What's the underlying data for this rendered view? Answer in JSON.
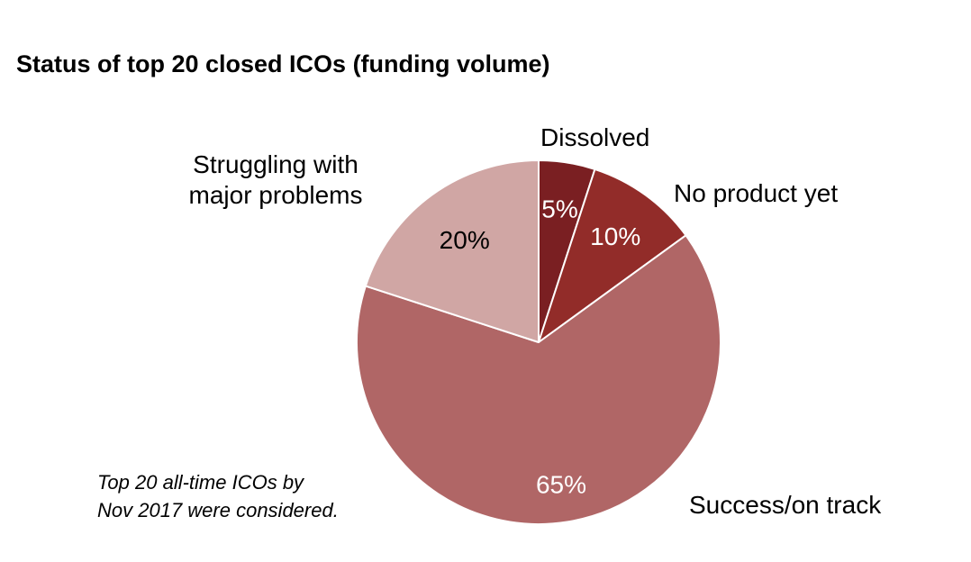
{
  "chart_data": {
    "type": "pie",
    "title": "Status of top 20 closed ICOs (funding volume)",
    "start_angle_deg": 0,
    "direction": "clockwise",
    "slices": [
      {
        "name": "Dissolved",
        "label_lines": [
          "Dissolved"
        ],
        "value": 5,
        "value_label": "5%",
        "color": "#7a1f22"
      },
      {
        "name": "No product yet",
        "label_lines": [
          "No product yet"
        ],
        "value": 10,
        "value_label": "10%",
        "color": "#922c29"
      },
      {
        "name": "Success/on track",
        "label_lines": [
          "Success/on track"
        ],
        "value": 65,
        "value_label": "65%",
        "color": "#b06666"
      },
      {
        "name": "Struggling with major problems",
        "label_lines": [
          "Struggling with",
          "major problems"
        ],
        "value": 20,
        "value_label": "20%",
        "color": "#d0a6a4"
      }
    ],
    "footnote": [
      "Top 20 all-time ICOs by",
      "Nov 2017 were considered."
    ]
  }
}
